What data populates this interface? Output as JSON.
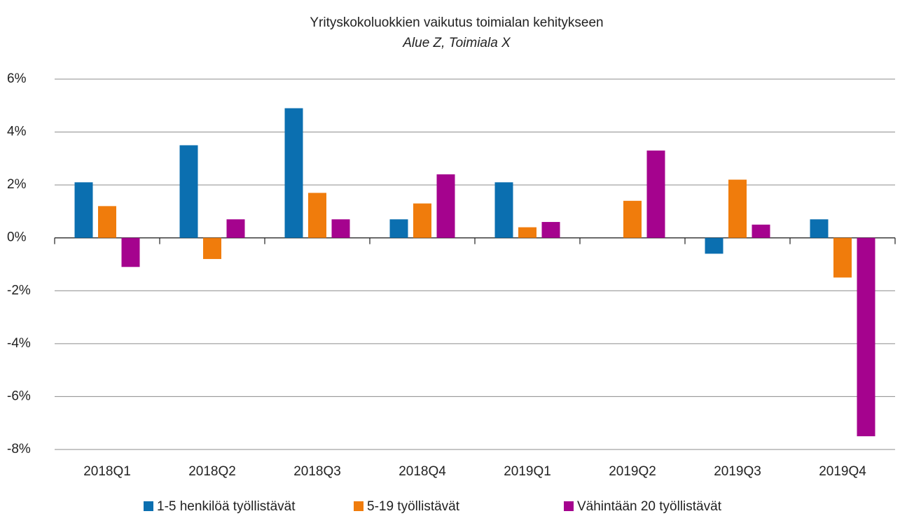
{
  "chart_data": {
    "type": "bar",
    "title": "Yrityskokoluokkien vaikutus toimialan kehitykseen",
    "subtitle": "Alue Z, Toimiala X",
    "categories": [
      "2018Q1",
      "2018Q2",
      "2018Q3",
      "2018Q4",
      "2019Q1",
      "2019Q2",
      "2019Q3",
      "2019Q4"
    ],
    "series": [
      {
        "name": "1-5 henkilöä työllistävät",
        "color": "#0b6fb0",
        "values": [
          2.1,
          3.5,
          4.9,
          0.7,
          2.1,
          0,
          -0.6,
          0.7
        ]
      },
      {
        "name": "5-19 työllistävät",
        "color": "#f07c0c",
        "values": [
          1.2,
          -0.8,
          1.7,
          1.3,
          0.4,
          1.4,
          2.2,
          -1.5
        ]
      },
      {
        "name": "Vähintään 20 työllistävät",
        "color": "#a5038e",
        "values": [
          -1.1,
          0.7,
          0.7,
          2.4,
          0.6,
          3.3,
          0.5,
          -7.5
        ]
      }
    ],
    "ylim": [
      -8,
      6
    ],
    "yticks": [
      {
        "value": -8,
        "label": "-8%"
      },
      {
        "value": -6,
        "label": "-6%"
      },
      {
        "value": -4,
        "label": "-4%"
      },
      {
        "value": -2,
        "label": "-2%"
      },
      {
        "value": 0,
        "label": "0%"
      },
      {
        "value": 2,
        "label": "2%"
      },
      {
        "value": 4,
        "label": "4%"
      },
      {
        "value": 6,
        "label": "6%"
      }
    ],
    "grid": true,
    "legend": "bottom"
  }
}
